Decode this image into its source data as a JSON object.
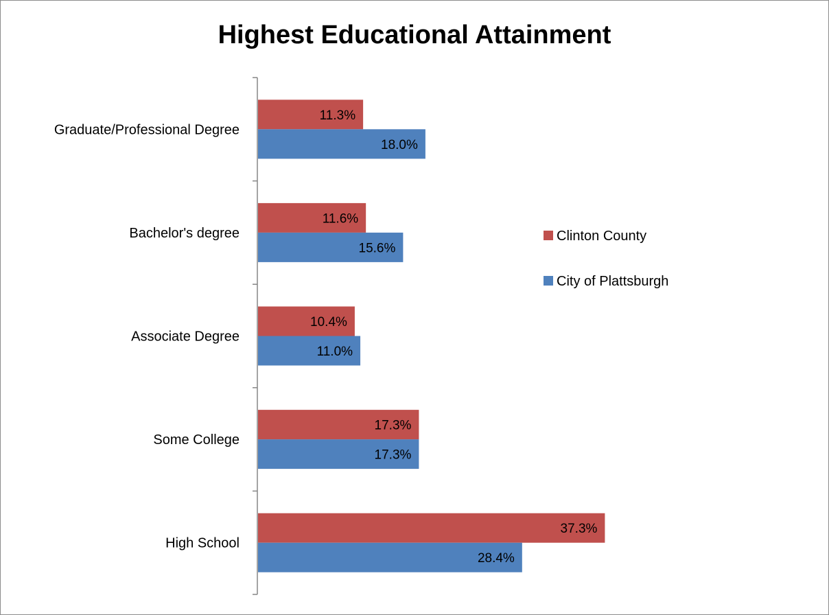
{
  "chart_data": {
    "type": "bar",
    "orientation": "horizontal",
    "title": "Highest Educational Attainment",
    "categories": [
      "Graduate/Professional Degree",
      "Bachelor's degree",
      "Associate Degree",
      "Some College",
      "High School"
    ],
    "series": [
      {
        "name": "Clinton County",
        "color": "#c0504d",
        "values": [
          11.3,
          11.6,
          10.4,
          17.3,
          37.3
        ],
        "labels": [
          "11.3%",
          "11.6%",
          "10.4%",
          "17.3%",
          "37.3%"
        ]
      },
      {
        "name": "City of Plattsburgh",
        "color": "#4f81bd",
        "values": [
          18.0,
          15.6,
          11.0,
          17.3,
          28.4
        ],
        "labels": [
          "18.0%",
          "15.6%",
          "11.0%",
          "17.3%",
          "28.4%"
        ]
      }
    ],
    "xlim": [
      0,
      60
    ],
    "grid": false,
    "legend": "right"
  }
}
